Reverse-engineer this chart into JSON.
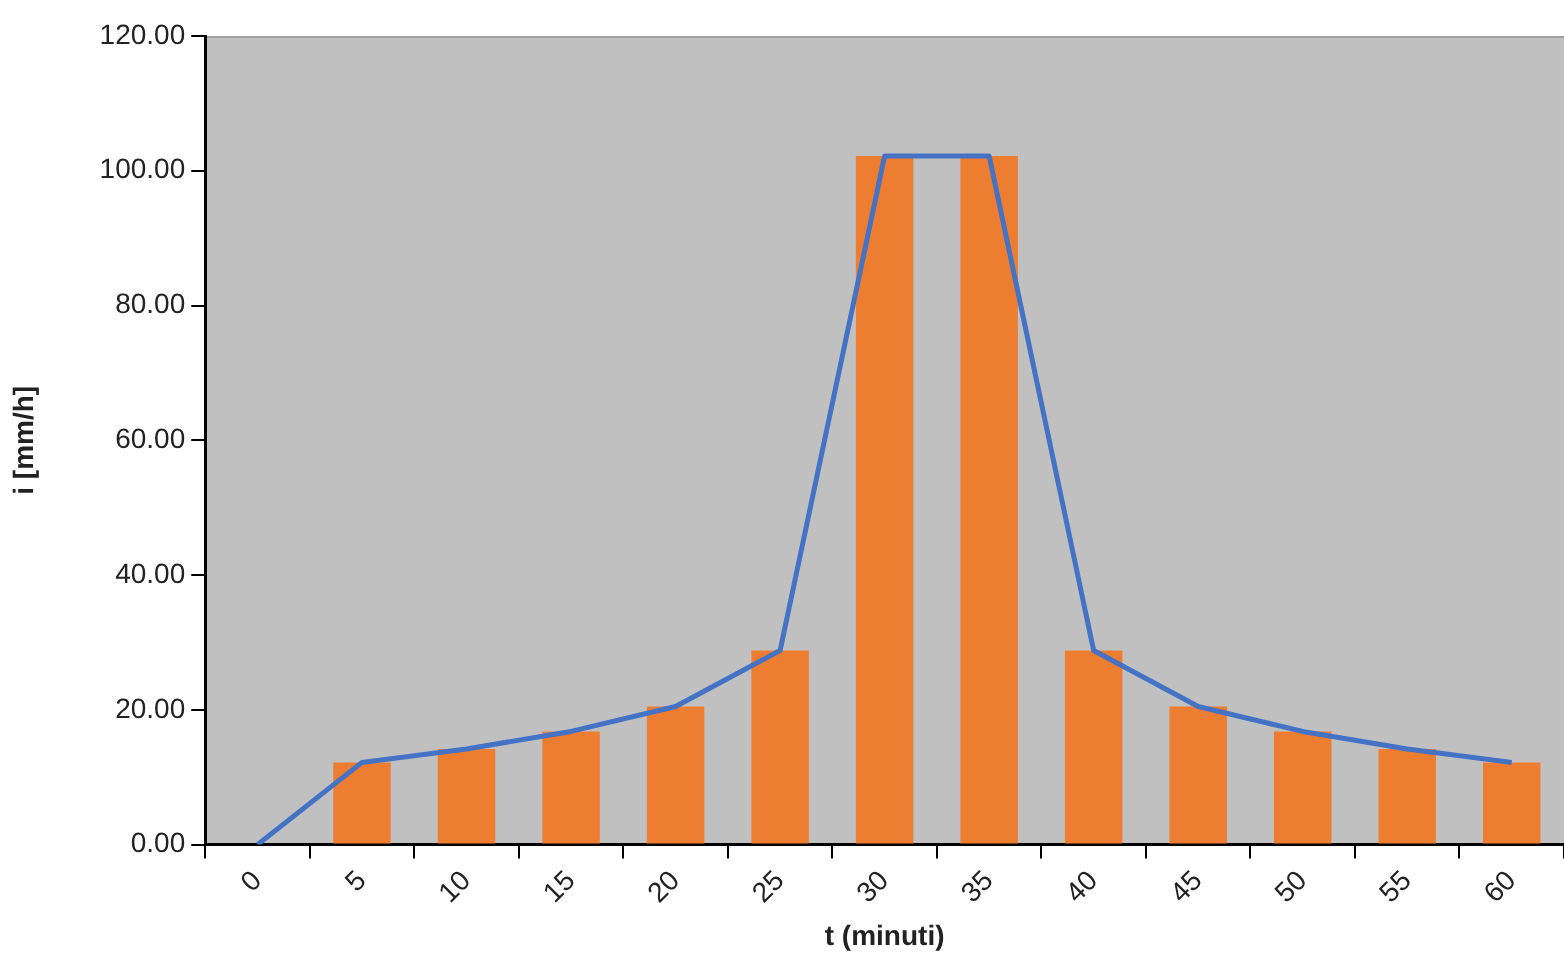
{
  "chart_data": {
    "type": "bar",
    "xlabel": "t (minuti)",
    "ylabel": "i [mm/h]",
    "categories": [
      "0",
      "5",
      "10",
      "15",
      "20",
      "25",
      "30",
      "35",
      "40",
      "45",
      "50",
      "55",
      "60"
    ],
    "series": [
      {
        "color": "#ed7d31",
        "values": [
          null,
          12.2,
          14.2,
          16.8,
          20.5,
          28.8,
          102.2,
          102.2,
          28.8,
          20.5,
          16.8,
          14.2,
          12.2
        ]
      },
      {
        "type": "line",
        "color": "#4472c4",
        "marker": "none",
        "values": [
          0,
          12.2,
          14.2,
          16.8,
          20.5,
          28.8,
          102.2,
          102.2,
          28.8,
          20.5,
          16.8,
          14.2,
          12.2
        ]
      }
    ],
    "ylim": [
      0,
      120
    ],
    "yticks": [
      {
        "value": 0,
        "label": "0.00"
      },
      {
        "value": 20,
        "label": "20.00"
      },
      {
        "value": 40,
        "label": "40.00"
      },
      {
        "value": 60,
        "label": "60.00"
      },
      {
        "value": 80,
        "label": "80.00"
      },
      {
        "value": 100,
        "label": "100.00"
      },
      {
        "value": 120,
        "label": "120.00"
      }
    ],
    "grid": false,
    "legend": false
  }
}
